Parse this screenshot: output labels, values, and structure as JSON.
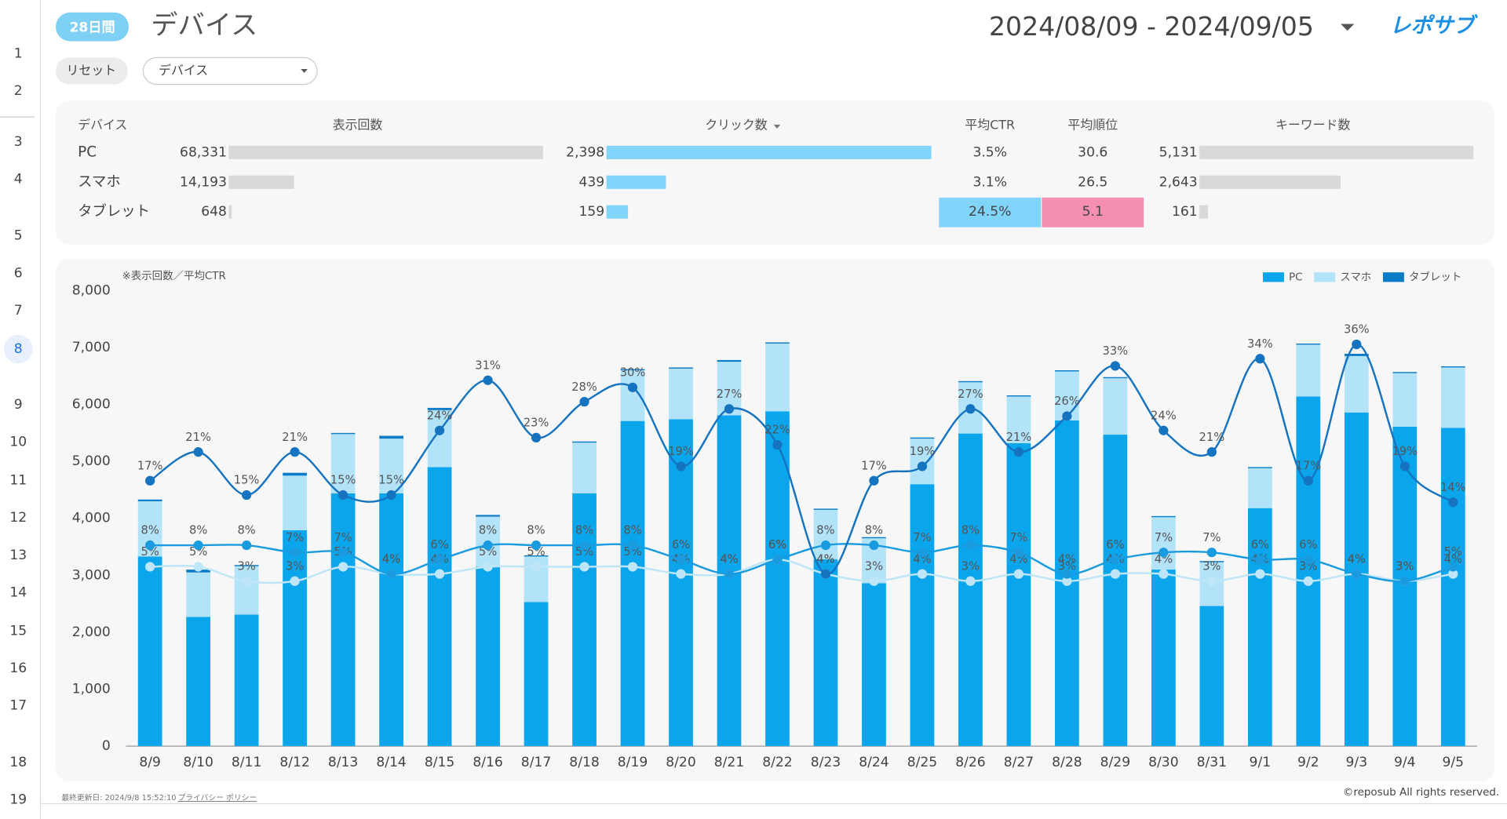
{
  "row_numbers": [
    1,
    2,
    3,
    4,
    5,
    6,
    7,
    8,
    9,
    10,
    11,
    12,
    13,
    14,
    15,
    16,
    17,
    18,
    19
  ],
  "header": {
    "badge": "28日間",
    "title": "デバイス",
    "date_range": "2024/08/09 - 2024/09/05",
    "logo": "レポサブ"
  },
  "filters": {
    "reset": "リセット",
    "dropdown": "デバイス"
  },
  "table": {
    "columns": [
      "デバイス",
      "表示回数",
      "クリック数",
      "平均CTR",
      "平均順位",
      "キーワード数"
    ],
    "bar_colors": {
      "impressions": "#d9d9d9",
      "clicks": "#81d4fa",
      "keywords": "#d9d9d9"
    },
    "highlight_colors": {
      "ctr": "#81d4fa",
      "rank": "#f48fb1"
    },
    "rows": [
      {
        "device": "PC",
        "impressions": {
          "value": 68331,
          "label": "68,331"
        },
        "clicks": {
          "value": 2398,
          "label": "2,398"
        },
        "ctr": {
          "value": 3.5,
          "label": "3.5%"
        },
        "rank": 30.6,
        "keywords": {
          "value": 5131,
          "label": "5,131"
        }
      },
      {
        "device": "スマホ",
        "impressions": {
          "value": 14193,
          "label": "14,193"
        },
        "clicks": 439,
        "ctr": {
          "value": 3.1,
          "label": "3.1%"
        },
        "rank": 26.5,
        "keywords": {
          "value": 2643,
          "label": "2,643"
        }
      },
      {
        "device": "タブレット",
        "impressions": 648,
        "clicks": 159,
        "ctr": {
          "value": 24.5,
          "label": "24.5%"
        },
        "rank": 5.1,
        "keywords": 161
      }
    ]
  },
  "chart_data": {
    "type": "stacked_bar_line",
    "note": "※表示回数／平均CTR",
    "categories": [
      "8/9",
      "8/10",
      "8/11",
      "8/12",
      "8/13",
      "8/14",
      "8/15",
      "8/16",
      "8/17",
      "8/18",
      "8/19",
      "8/20",
      "8/21",
      "8/22",
      "8/23",
      "8/24",
      "8/25",
      "8/26",
      "8/27",
      "8/28",
      "8/29",
      "8/30",
      "8/31",
      "9/1",
      "9/2",
      "9/3",
      "9/4",
      "9/5"
    ],
    "series": [
      {
        "name": "PC",
        "color": "#0ba5ec",
        "values": [
          3330,
          2270,
          2310,
          3790,
          4440,
          4440,
          4900,
          3150,
          2530,
          4440,
          5710,
          5740,
          5810,
          5880,
          3280,
          2860,
          4600,
          5490,
          5320,
          5720,
          5470,
          3100,
          2460,
          4180,
          6140,
          5860,
          5610,
          5590
        ]
      },
      {
        "name": "スマホ",
        "color": "#b3e3f9",
        "values": [
          970,
          780,
          850,
          960,
          1040,
          960,
          1000,
          880,
          800,
          890,
          890,
          890,
          940,
          1190,
          870,
          790,
          800,
          900,
          820,
          860,
          990,
          920,
          770,
          700,
          910,
          990,
          940,
          1060
        ]
      },
      {
        "name": "タブレット",
        "color": "#0a7cc8",
        "values": [
          30,
          50,
          20,
          50,
          20,
          50,
          40,
          30,
          20,
          20,
          20,
          20,
          30,
          20,
          20,
          20,
          20,
          20,
          20,
          20,
          20,
          20,
          20,
          20,
          20,
          40,
          20,
          20
        ]
      }
    ],
    "lines": [
      {
        "color": "#bfe6f8",
        "values": [
          5,
          5,
          3,
          3,
          5,
          4,
          4,
          5,
          5,
          5,
          5,
          4,
          4,
          6,
          4,
          3,
          4,
          3,
          4,
          3,
          4,
          4,
          3,
          4,
          3,
          4,
          3,
          4
        ],
        "value_labels": [
          "5%",
          "5%",
          "3%",
          "3%",
          "5%",
          "4%",
          "4%",
          "5%",
          "5%",
          "5%",
          "5%",
          "4%",
          "4%",
          "6%",
          "4%",
          "3%",
          "4%",
          "3%",
          "4%",
          "3%",
          "4%",
          "4%",
          "3%",
          "4%",
          "3%",
          "4%",
          "3%",
          "4%"
        ]
      },
      {
        "color": "#1a9be0",
        "values": [
          8,
          8,
          8,
          7,
          7,
          4,
          6,
          8,
          8,
          8,
          8,
          6,
          4,
          6,
          8,
          8,
          7,
          8,
          7,
          4,
          6,
          7,
          7,
          6,
          6,
          4,
          3,
          5
        ],
        "value_labels": [
          "8%",
          "8%",
          "8%",
          "7%",
          "7%",
          "4%",
          "6%",
          "8%",
          "8%",
          "8%",
          "8%",
          "6%",
          "4%",
          "6%",
          "8%",
          "8%",
          "7%",
          "8%",
          "7%",
          "4%",
          "6%",
          "7%",
          "7%",
          "6%",
          "6%",
          "4%",
          "3%",
          "5%"
        ]
      },
      {
        "color": "#1573c0",
        "values": [
          17,
          21,
          15,
          21,
          15,
          15,
          24,
          31,
          23,
          28,
          30,
          19,
          27,
          22,
          4,
          17,
          19,
          27,
          21,
          26,
          33,
          24,
          21,
          34,
          17,
          36,
          19,
          14
        ],
        "value_labels": [
          "17%",
          "21%",
          "15%",
          "21%",
          "15%",
          "15%",
          "24%",
          "31%",
          "23%",
          "28%",
          "30%",
          "19%",
          "27%",
          "22%",
          "4%",
          "17%",
          "19%",
          "27%",
          "21%",
          "26%",
          "33%",
          "24%",
          "21%",
          "34%",
          "17%",
          "36%",
          "19%",
          "14%"
        ]
      }
    ],
    "ylim": [
      0,
      8000
    ],
    "yticks": [
      0,
      {
        "value": 1000,
        "label": "1,000"
      },
      {
        "value": 2000,
        "label": "2,000"
      },
      {
        "value": 3000,
        "label": "3,000"
      },
      {
        "value": 4000,
        "label": "4,000"
      },
      {
        "value": 5000,
        "label": "5,000"
      },
      {
        "value": 6000,
        "label": "6,000"
      },
      {
        "value": 7000,
        "label": "7,000"
      },
      {
        "value": 8000,
        "label": "8,000"
      }
    ],
    "y2lim": [
      -20,
      43.5
    ],
    "legend": "top-right"
  },
  "footer": {
    "updated": "最終更新日: 2024/9/8 15:52:10",
    "privacy": "プライバシー ポリシー",
    "copyright": "©reposub All rights reserved."
  }
}
